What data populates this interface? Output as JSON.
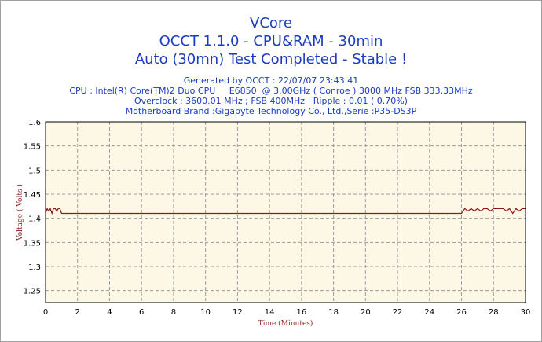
{
  "header": {
    "title": "VCore",
    "subtitle": "OCCT 1.1.0 - CPU&RAM - 30min",
    "status": "Auto (30mn) Test Completed - Stable !"
  },
  "info": {
    "generated": "Generated by OCCT : 22/07/07 23:43:41",
    "cpu": "CPU : Intel(R) Core(TM)2 Duo CPU     E6850  @ 3.00GHz ( Conroe ) 3000 MHz FSB 333.33MHz",
    "overclock": "Overclock : 3600.01 MHz ; FSB 400MHz | Ripple : 0.01 ( 0.70%)",
    "motherboard": "Motherboard Brand :Gigabyte Technology Co., Ltd.,Serie :P35-DS3P"
  },
  "colors": {
    "title": "#1a3cbf",
    "plot_background": "#fdf8e6",
    "series": "#8b1a1a",
    "grid": "#9a9a9a"
  },
  "chart_data": {
    "type": "line",
    "xlabel": "Time (Minutes)",
    "ylabel": "Voltage ( Volts )",
    "xlim": [
      0,
      30
    ],
    "ylim": [
      1.225,
      1.6
    ],
    "xticks": [
      0,
      2,
      4,
      6,
      8,
      10,
      12,
      14,
      16,
      18,
      20,
      22,
      24,
      26,
      28,
      30
    ],
    "yticks": [
      1.25,
      1.3,
      1.35,
      1.4,
      1.45,
      1.5,
      1.55,
      1.6
    ],
    "ytick_labels": [
      "1.25",
      "1.3",
      "1.35",
      "1.4",
      "1.45",
      "1.5",
      "1.55",
      "1.6"
    ],
    "grid": true,
    "series": [
      {
        "name": "",
        "x": [
          0,
          0.1,
          0.2,
          0.3,
          0.4,
          0.5,
          0.6,
          0.7,
          0.8,
          0.9,
          1.0,
          1.1,
          5,
          10,
          15,
          20,
          25,
          26.0,
          26.2,
          26.4,
          26.6,
          26.8,
          27.0,
          27.2,
          27.4,
          27.6,
          27.8,
          28.0,
          28.2,
          28.4,
          28.6,
          28.8,
          29.0,
          29.2,
          29.4,
          29.6,
          29.8,
          30.0
        ],
        "y": [
          1.41,
          1.42,
          1.415,
          1.42,
          1.41,
          1.42,
          1.42,
          1.415,
          1.42,
          1.42,
          1.41,
          1.41,
          1.41,
          1.41,
          1.41,
          1.41,
          1.41,
          1.41,
          1.42,
          1.415,
          1.42,
          1.415,
          1.42,
          1.415,
          1.42,
          1.42,
          1.415,
          1.42,
          1.42,
          1.42,
          1.42,
          1.415,
          1.42,
          1.41,
          1.42,
          1.415,
          1.42,
          1.42
        ]
      }
    ]
  }
}
